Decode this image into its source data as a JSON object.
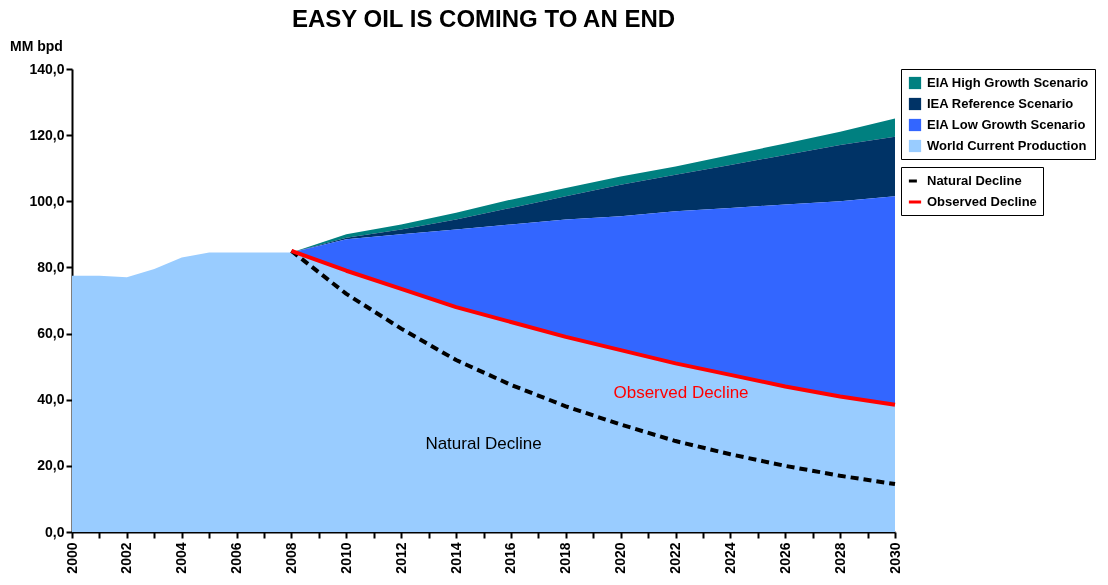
{
  "chart_data": {
    "type": "area",
    "title": "EASY OIL IS COMING TO AN END",
    "ylabel": "MM bpd",
    "xlim": [
      2000,
      2030
    ],
    "xticks": [
      2000,
      {
        "value": 2001,
        "label": null
      },
      2002,
      {
        "value": 2003,
        "label": null
      },
      2004,
      {
        "value": 2005,
        "label": null
      },
      2006,
      {
        "value": 2007,
        "label": null
      },
      2008,
      {
        "value": 2009,
        "label": null
      },
      2010,
      {
        "value": 2011,
        "label": null
      },
      2012,
      {
        "value": 2013,
        "label": null
      },
      2014,
      {
        "value": 2015,
        "label": null
      },
      2016,
      {
        "value": 2017,
        "label": null
      },
      2018,
      {
        "value": 2019,
        "label": null
      },
      2020,
      {
        "value": 2021,
        "label": null
      },
      2022,
      {
        "value": 2023,
        "label": null
      },
      2024,
      {
        "value": 2025,
        "label": null
      },
      2026,
      {
        "value": 2027,
        "label": null
      },
      2028,
      {
        "value": 2029,
        "label": null
      },
      2030
    ],
    "ylim": [
      0,
      140
    ],
    "yticks": [
      {
        "value": 0,
        "label": "0,0"
      },
      {
        "value": 20,
        "label": "20,0"
      },
      {
        "value": 40,
        "label": "40,0"
      },
      {
        "value": 60,
        "label": "60,0"
      },
      {
        "value": 80,
        "label": "80,0"
      },
      {
        "value": 100,
        "label": "100,0"
      },
      {
        "value": 120,
        "label": "120,0"
      },
      {
        "value": 140,
        "label": "140,0"
      }
    ],
    "grid": false,
    "legend": "right",
    "series": [
      {
        "name": "EIA High Growth Scenario",
        "color": "#008080",
        "x": [
          2008,
          2010,
          2012,
          2014,
          2016,
          2018,
          2020,
          2022,
          2024,
          2026,
          2028,
          2030
        ],
        "values": [
          84.5,
          90,
          93,
          96.5,
          100.5,
          104,
          107.5,
          110.5,
          114,
          117.5,
          121,
          125
        ]
      },
      {
        "name": "IEA Reference Scenario",
        "color": "#003366",
        "x": [
          2008,
          2010,
          2012,
          2014,
          2016,
          2018,
          2020,
          2022,
          2024,
          2026,
          2028,
          2030
        ],
        "values": [
          84.5,
          89,
          91.5,
          94.5,
          98,
          101.5,
          105,
          108,
          111,
          114,
          117,
          119.5
        ]
      },
      {
        "name": "EIA Low Growth Scenario",
        "color": "#3366ff",
        "x": [
          2008,
          2010,
          2012,
          2014,
          2016,
          2018,
          2020,
          2022,
          2024,
          2026,
          2028,
          2030
        ],
        "values": [
          84.5,
          88.5,
          90,
          91.5,
          93,
          94.5,
          95.5,
          97,
          98,
          99,
          100,
          101.5
        ]
      },
      {
        "name": "World Current Production",
        "color": "#99ccff",
        "x": [
          2000,
          2001,
          2002,
          2003,
          2004,
          2005,
          2006,
          2007,
          2008,
          2010,
          2012,
          2014,
          2016,
          2018,
          2020,
          2022,
          2024,
          2026,
          2028,
          2030
        ],
        "values": [
          77.5,
          77.5,
          77,
          79.5,
          83,
          84.5,
          84.5,
          84.5,
          84.5,
          79,
          73.5,
          68,
          63.5,
          59,
          55,
          51,
          47.5,
          44,
          41,
          38.5
        ]
      },
      {
        "name": "Natural Decline",
        "type": "line",
        "line_style": "dashed",
        "color": "#000000",
        "x": [
          2008,
          2010,
          2012,
          2014,
          2016,
          2018,
          2020,
          2022,
          2024,
          2026,
          2028,
          2030
        ],
        "values": [
          85,
          72,
          61.5,
          52,
          44.5,
          38,
          32.5,
          27.5,
          23.5,
          20,
          17,
          14.5
        ]
      },
      {
        "name": "Observed Decline",
        "type": "line",
        "line_style": "solid",
        "color": "#ff0000",
        "x": [
          2008,
          2010,
          2012,
          2014,
          2016,
          2018,
          2020,
          2022,
          2024,
          2026,
          2028,
          2030
        ],
        "values": [
          85,
          79,
          73.5,
          68,
          63.5,
          59,
          55,
          51,
          47.5,
          44,
          41,
          38.5
        ]
      }
    ],
    "annotations": [
      "Observed Decline",
      "Natural Decline"
    ]
  }
}
